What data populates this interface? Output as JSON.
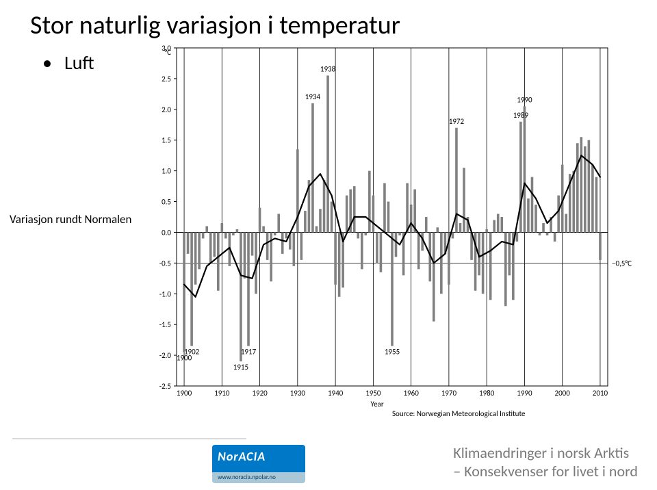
{
  "title": "Stor naturlig variasjon i temperatur",
  "bullet": "Luft",
  "side_label": "Variasjon rundt Normalen",
  "x_axis_label": "Year",
  "source_text": "Source: Norwegian Meteorological Institute",
  "footer": {
    "logo_main": "NorACIA",
    "logo_sub": "www.noracia.npolar.no",
    "line1": "Klimaendringer i norsk Arktis",
    "line2": "– Konsekvenser for livet i nord"
  },
  "chart": {
    "type": "bar",
    "yunit": "°C",
    "ylim": [
      -2.5,
      3.0
    ],
    "yticks": [
      -2.5,
      -2.0,
      -1.5,
      -1.0,
      -0.5,
      0.0,
      0.5,
      1.0,
      1.5,
      2.0,
      2.5,
      3.0
    ],
    "xlim": [
      1898,
      2012
    ],
    "xticks": [
      1900,
      1910,
      1920,
      1930,
      1940,
      1950,
      1960,
      1970,
      1980,
      1990,
      2000,
      2010
    ],
    "background_color": "#ffffff",
    "grid_color": "#000000",
    "bar_positive_color": "#808080",
    "bar_negative_color": "#808080",
    "bar_width": 0.65,
    "ref_line_value": -0.5,
    "ref_line_label": "−0,5°C",
    "ref_line_color": "#000000",
    "trend_color": "#000000",
    "trend_width": 2.2,
    "axis_fontsize": 11,
    "label_fontsize": 11,
    "annotations": [
      {
        "year": 1900,
        "value": -1.95,
        "label": "1900",
        "below": true
      },
      {
        "year": 1902,
        "value": -1.85,
        "label": "1902",
        "below": true
      },
      {
        "year": 1915,
        "value": -2.1,
        "label": "1915",
        "below": true
      },
      {
        "year": 1917,
        "value": -1.85,
        "label": "1917",
        "below": true
      },
      {
        "year": 1934,
        "value": 2.1,
        "label": "1934",
        "below": false
      },
      {
        "year": 1938,
        "value": 2.55,
        "label": "1938",
        "below": false
      },
      {
        "year": 1955,
        "value": -1.85,
        "label": "1955",
        "below": true
      },
      {
        "year": 1972,
        "value": 1.7,
        "label": "1972",
        "below": false
      },
      {
        "year": 1989,
        "value": 1.8,
        "label": "1989",
        "below": false
      },
      {
        "year": 1990,
        "value": 2.05,
        "label": "1990",
        "below": false
      }
    ],
    "bars": [
      {
        "year": 1900,
        "v": -1.95
      },
      {
        "year": 1901,
        "v": -0.35
      },
      {
        "year": 1902,
        "v": -1.85
      },
      {
        "year": 1903,
        "v": -0.85
      },
      {
        "year": 1904,
        "v": -0.6
      },
      {
        "year": 1905,
        "v": -0.1
      },
      {
        "year": 1906,
        "v": 0.1
      },
      {
        "year": 1907,
        "v": -0.5
      },
      {
        "year": 1908,
        "v": -0.4
      },
      {
        "year": 1909,
        "v": -0.95
      },
      {
        "year": 1910,
        "v": 0.15
      },
      {
        "year": 1911,
        "v": -0.1
      },
      {
        "year": 1912,
        "v": -0.55
      },
      {
        "year": 1913,
        "v": -0.05
      },
      {
        "year": 1914,
        "v": 0.05
      },
      {
        "year": 1915,
        "v": -2.1
      },
      {
        "year": 1916,
        "v": -0.75
      },
      {
        "year": 1917,
        "v": -1.85
      },
      {
        "year": 1918,
        "v": -0.38
      },
      {
        "year": 1919,
        "v": -1.0
      },
      {
        "year": 1920,
        "v": 0.4
      },
      {
        "year": 1921,
        "v": 0.1
      },
      {
        "year": 1922,
        "v": -0.45
      },
      {
        "year": 1923,
        "v": -0.8
      },
      {
        "year": 1924,
        "v": -0.05
      },
      {
        "year": 1925,
        "v": 0.3
      },
      {
        "year": 1926,
        "v": -0.35
      },
      {
        "year": 1927,
        "v": -0.1
      },
      {
        "year": 1928,
        "v": -0.28
      },
      {
        "year": 1929,
        "v": -0.55
      },
      {
        "year": 1930,
        "v": 1.35
      },
      {
        "year": 1931,
        "v": -0.45
      },
      {
        "year": 1932,
        "v": 0.35
      },
      {
        "year": 1933,
        "v": 0.85
      },
      {
        "year": 1934,
        "v": 2.1
      },
      {
        "year": 1935,
        "v": 0.1
      },
      {
        "year": 1936,
        "v": 0.38
      },
      {
        "year": 1937,
        "v": 0.85
      },
      {
        "year": 1938,
        "v": 2.55
      },
      {
        "year": 1939,
        "v": 0.5
      },
      {
        "year": 1940,
        "v": -0.85
      },
      {
        "year": 1941,
        "v": -1.05
      },
      {
        "year": 1942,
        "v": -0.9
      },
      {
        "year": 1943,
        "v": 0.6
      },
      {
        "year": 1944,
        "v": 0.7
      },
      {
        "year": 1945,
        "v": 0.75
      },
      {
        "year": 1946,
        "v": -0.1
      },
      {
        "year": 1947,
        "v": -0.6
      },
      {
        "year": 1948,
        "v": -0.05
      },
      {
        "year": 1949,
        "v": 1.0
      },
      {
        "year": 1950,
        "v": 0.6
      },
      {
        "year": 1951,
        "v": -0.5
      },
      {
        "year": 1952,
        "v": -0.65
      },
      {
        "year": 1953,
        "v": 0.8
      },
      {
        "year": 1954,
        "v": 0.5
      },
      {
        "year": 1955,
        "v": -1.85
      },
      {
        "year": 1956,
        "v": -0.4
      },
      {
        "year": 1957,
        "v": -0.05
      },
      {
        "year": 1958,
        "v": -0.7
      },
      {
        "year": 1959,
        "v": 0.8
      },
      {
        "year": 1960,
        "v": 0.45
      },
      {
        "year": 1961,
        "v": 0.7
      },
      {
        "year": 1962,
        "v": -0.6
      },
      {
        "year": 1963,
        "v": -0.3
      },
      {
        "year": 1964,
        "v": 0.25
      },
      {
        "year": 1965,
        "v": -0.8
      },
      {
        "year": 1966,
        "v": -1.45
      },
      {
        "year": 1967,
        "v": 0.08
      },
      {
        "year": 1968,
        "v": -1.0
      },
      {
        "year": 1969,
        "v": -0.35
      },
      {
        "year": 1970,
        "v": -0.85
      },
      {
        "year": 1971,
        "v": -0.1
      },
      {
        "year": 1972,
        "v": 1.7
      },
      {
        "year": 1973,
        "v": 0.15
      },
      {
        "year": 1974,
        "v": 1.05
      },
      {
        "year": 1975,
        "v": 0.25
      },
      {
        "year": 1976,
        "v": -0.45
      },
      {
        "year": 1977,
        "v": -0.95
      },
      {
        "year": 1978,
        "v": -0.7
      },
      {
        "year": 1979,
        "v": -1.0
      },
      {
        "year": 1980,
        "v": 0.05
      },
      {
        "year": 1981,
        "v": -1.1
      },
      {
        "year": 1982,
        "v": 0.2
      },
      {
        "year": 1983,
        "v": 0.3
      },
      {
        "year": 1984,
        "v": 0.25
      },
      {
        "year": 1985,
        "v": -1.2
      },
      {
        "year": 1986,
        "v": -0.7
      },
      {
        "year": 1987,
        "v": -1.1
      },
      {
        "year": 1988,
        "v": -0.15
      },
      {
        "year": 1989,
        "v": 1.8
      },
      {
        "year": 1990,
        "v": 2.05
      },
      {
        "year": 1991,
        "v": 0.55
      },
      {
        "year": 1992,
        "v": 0.9
      },
      {
        "year": 1993,
        "v": 0.45
      },
      {
        "year": 1994,
        "v": -0.05
      },
      {
        "year": 1995,
        "v": 0.15
      },
      {
        "year": 1996,
        "v": -0.05
      },
      {
        "year": 1997,
        "v": 0.25
      },
      {
        "year": 1998,
        "v": -0.15
      },
      {
        "year": 1999,
        "v": 0.6
      },
      {
        "year": 2000,
        "v": 1.1
      },
      {
        "year": 2001,
        "v": 0.3
      },
      {
        "year": 2002,
        "v": 0.95
      },
      {
        "year": 2003,
        "v": 1.0
      },
      {
        "year": 2004,
        "v": 1.45
      },
      {
        "year": 2005,
        "v": 1.55
      },
      {
        "year": 2006,
        "v": 1.4
      },
      {
        "year": 2007,
        "v": 1.5
      },
      {
        "year": 2008,
        "v": 1.1
      },
      {
        "year": 2009,
        "v": 0.9
      },
      {
        "year": 2010,
        "v": -0.45
      }
    ],
    "trend_pts": [
      {
        "year": 1900,
        "v": -0.85
      },
      {
        "year": 1903,
        "v": -1.05
      },
      {
        "year": 1906,
        "v": -0.55
      },
      {
        "year": 1909,
        "v": -0.4
      },
      {
        "year": 1912,
        "v": -0.25
      },
      {
        "year": 1915,
        "v": -0.7
      },
      {
        "year": 1918,
        "v": -0.75
      },
      {
        "year": 1921,
        "v": -0.2
      },
      {
        "year": 1924,
        "v": -0.1
      },
      {
        "year": 1927,
        "v": -0.15
      },
      {
        "year": 1930,
        "v": 0.25
      },
      {
        "year": 1933,
        "v": 0.75
      },
      {
        "year": 1936,
        "v": 0.95
      },
      {
        "year": 1939,
        "v": 0.6
      },
      {
        "year": 1942,
        "v": -0.15
      },
      {
        "year": 1945,
        "v": 0.25
      },
      {
        "year": 1948,
        "v": 0.25
      },
      {
        "year": 1951,
        "v": 0.1
      },
      {
        "year": 1954,
        "v": -0.05
      },
      {
        "year": 1957,
        "v": -0.2
      },
      {
        "year": 1960,
        "v": 0.15
      },
      {
        "year": 1963,
        "v": -0.1
      },
      {
        "year": 1966,
        "v": -0.5
      },
      {
        "year": 1969,
        "v": -0.35
      },
      {
        "year": 1972,
        "v": 0.3
      },
      {
        "year": 1975,
        "v": 0.2
      },
      {
        "year": 1978,
        "v": -0.4
      },
      {
        "year": 1981,
        "v": -0.3
      },
      {
        "year": 1984,
        "v": -0.15
      },
      {
        "year": 1987,
        "v": -0.2
      },
      {
        "year": 1990,
        "v": 0.8
      },
      {
        "year": 1993,
        "v": 0.55
      },
      {
        "year": 1996,
        "v": 0.15
      },
      {
        "year": 1999,
        "v": 0.35
      },
      {
        "year": 2002,
        "v": 0.8
      },
      {
        "year": 2005,
        "v": 1.25
      },
      {
        "year": 2008,
        "v": 1.1
      },
      {
        "year": 2010,
        "v": 0.9
      }
    ]
  }
}
